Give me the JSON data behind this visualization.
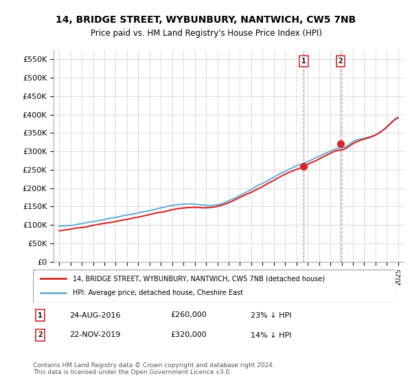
{
  "title": "14, BRIDGE STREET, WYBUNBURY, NANTWICH, CW5 7NB",
  "subtitle": "Price paid vs. HM Land Registry's House Price Index (HPI)",
  "ylabel_ticks": [
    "£0",
    "£50K",
    "£100K",
    "£150K",
    "£200K",
    "£250K",
    "£300K",
    "£350K",
    "£400K",
    "£450K",
    "£500K",
    "£550K"
  ],
  "ytick_values": [
    0,
    50000,
    100000,
    150000,
    200000,
    250000,
    300000,
    350000,
    400000,
    450000,
    500000,
    550000
  ],
  "ylim": [
    0,
    575000
  ],
  "year_start": 1995,
  "year_end": 2025,
  "xtick_years": [
    1995,
    1996,
    1997,
    1998,
    1999,
    2000,
    2001,
    2002,
    2003,
    2004,
    2005,
    2006,
    2007,
    2008,
    2009,
    2010,
    2011,
    2012,
    2013,
    2014,
    2015,
    2016,
    2017,
    2018,
    2019,
    2020,
    2021,
    2022,
    2023,
    2024,
    2025
  ],
  "sale1_x": 2016.65,
  "sale1_y": 260000,
  "sale1_label": "1",
  "sale2_x": 2019.9,
  "sale2_y": 320000,
  "sale2_label": "2",
  "legend1_text": "14, BRIDGE STREET, WYBUNBURY, NANTWICH, CW5 7NB (detached house)",
  "legend2_text": "HPI: Average price, detached house, Cheshire East",
  "annotation1_num": "1",
  "annotation1_date": "24-AUG-2016",
  "annotation1_price": "£260,000",
  "annotation1_pct": "23% ↓ HPI",
  "annotation2_num": "2",
  "annotation2_date": "22-NOV-2019",
  "annotation2_price": "£320,000",
  "annotation2_pct": "14% ↓ HPI",
  "footer": "Contains HM Land Registry data © Crown copyright and database right 2024.\nThis data is licensed under the Open Government Licence v3.0.",
  "hpi_color": "#6baed6",
  "price_color": "#d62728",
  "sale_dot_color": "#d62728",
  "dashed_line_color": "#d62728",
  "background_color": "#ffffff",
  "grid_color": "#cccccc"
}
